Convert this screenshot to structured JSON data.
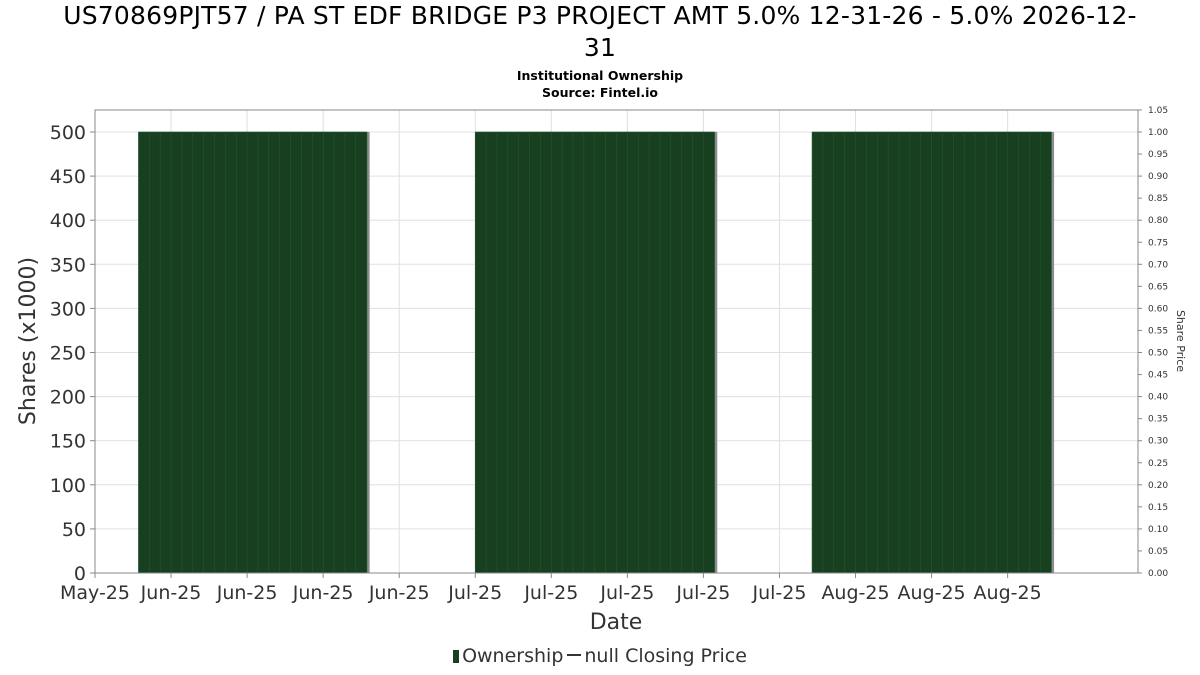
{
  "title_lines": [
    "US70869PJT57 / PA ST EDF BRIDGE P3 PROJECT AMT 5.0% 12-31-26 - 5.0% 2026-12-",
    "31"
  ],
  "subtitle_lines": [
    "Institutional Ownership",
    "Source: Fintel.io"
  ],
  "legend": {
    "ownership": "Ownership",
    "price": "null Closing Price"
  },
  "colors": {
    "ownership": "#173f20",
    "ownership_edge": "#1f5a2c",
    "bar_shadow": "#8c8c8c",
    "grid": "#e0e0e0"
  },
  "chart_data": {
    "type": "bar",
    "xlabel": "Date",
    "ylabel": "Shares (x1000)",
    "y2label": "Share Price",
    "ylim": [
      0,
      500
    ],
    "y2lim": [
      0,
      1.05
    ],
    "yticks": [
      "0",
      "50",
      "100",
      "150",
      "200",
      "250",
      "300",
      "350",
      "400",
      "450",
      "500"
    ],
    "y2ticks": [
      "0.00",
      "0.05",
      "0.10",
      "0.15",
      "0.20",
      "0.25",
      "0.30",
      "0.35",
      "0.40",
      "0.45",
      "0.50",
      "0.55",
      "0.60",
      "0.65",
      "0.70",
      "0.75",
      "0.80",
      "0.85",
      "0.90",
      "0.95",
      "1.00",
      "1.05"
    ],
    "xticks": [
      "May-25",
      "Jun-25",
      "Jun-25",
      "Jun-25",
      "Jun-25",
      "Jul-25",
      "Jul-25",
      "Jul-25",
      "Jul-25",
      "Jul-25",
      "Aug-25",
      "Aug-25",
      "Aug-25"
    ],
    "xlim": [
      "2025-05-27",
      "2025-08-31"
    ],
    "tick_dates": [
      "2025-05-27",
      "2025-06-03",
      "2025-06-10",
      "2025-06-17",
      "2025-06-24",
      "2025-07-01",
      "2025-07-08",
      "2025-07-15",
      "2025-07-22",
      "2025-07-29",
      "2025-08-05",
      "2025-08-12",
      "2025-08-19"
    ],
    "series": [
      {
        "kind": "ownership",
        "periods": [
          {
            "start": "2025-05-31",
            "end": "2025-06-20",
            "value": 500
          },
          {
            "start": "2025-07-01",
            "end": "2025-07-22",
            "value": 500
          },
          {
            "start": "2025-08-01",
            "end": "2025-08-22",
            "value": 500
          }
        ]
      }
    ]
  }
}
